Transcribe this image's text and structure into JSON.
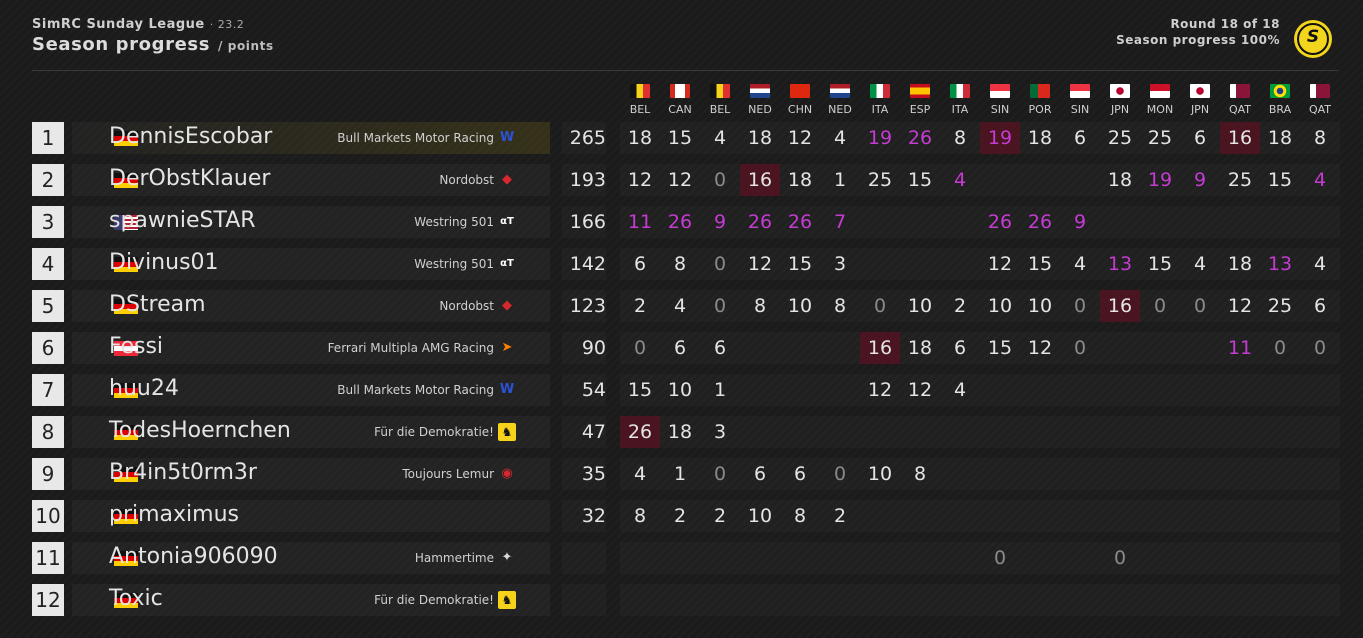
{
  "header": {
    "league": "SimRC Sunday League",
    "season": "· 23.2",
    "title": "Season progress",
    "unit": "/ points",
    "round": "Round 18 of 18",
    "progress": "Season progress 100%",
    "logo_letter": "S"
  },
  "colors": {
    "fastest_lap": "#c63bd3",
    "race_win_bg": "#4a1520",
    "accent": "#f2d51c"
  },
  "races": [
    {
      "label": "BEL",
      "flag": "belgium-flag"
    },
    {
      "label": "CAN",
      "flag": "canada-flag"
    },
    {
      "label": "BEL",
      "flag": "belgium-flag"
    },
    {
      "label": "NED",
      "flag": "netherlands-flag"
    },
    {
      "label": "CHN",
      "flag": "china-flag"
    },
    {
      "label": "NED",
      "flag": "netherlands-flag"
    },
    {
      "label": "ITA",
      "flag": "italy-flag"
    },
    {
      "label": "ESP",
      "flag": "spain-flag"
    },
    {
      "label": "ITA",
      "flag": "italy-flag"
    },
    {
      "label": "SIN",
      "flag": "singapore-flag"
    },
    {
      "label": "POR",
      "flag": "portugal-flag"
    },
    {
      "label": "SIN",
      "flag": "singapore-flag"
    },
    {
      "label": "JPN",
      "flag": "japan-flag"
    },
    {
      "label": "MON",
      "flag": "monaco-flag"
    },
    {
      "label": "JPN",
      "flag": "japan-flag"
    },
    {
      "label": "QAT",
      "flag": "qatar-flag"
    },
    {
      "label": "BRA",
      "flag": "brazil-flag"
    },
    {
      "label": "QAT",
      "flag": "qatar-flag"
    }
  ],
  "standings": [
    {
      "pos": "1",
      "driver": "DennisEscobar",
      "flag": "germany-flag",
      "team": "Bull Markets Motor Racing",
      "team_icon": "williams-icon",
      "total": "265",
      "results": [
        "18",
        "15",
        "4",
        "18",
        "12",
        "4",
        "19",
        "26",
        "8",
        "19",
        "18",
        "6",
        "25",
        "25",
        "6",
        "16",
        "18",
        "8"
      ],
      "fastest": [
        6,
        7,
        9
      ],
      "wins": [
        9,
        15
      ]
    },
    {
      "pos": "2",
      "driver": "DerObstKlauer",
      "flag": "germany-flag",
      "team": "Nordobst",
      "team_icon": "redbull-icon",
      "total": "193",
      "results": [
        "12",
        "12",
        "0",
        "16",
        "18",
        "1",
        "25",
        "15",
        "4",
        "",
        "",
        "",
        "18",
        "19",
        "9",
        "25",
        "15",
        "4"
      ],
      "fastest": [
        8,
        13,
        14,
        17
      ],
      "wins": [
        3
      ]
    },
    {
      "pos": "3",
      "driver": "spawnieSTAR",
      "flag": "usa-flag",
      "team": "Westring 501",
      "team_icon": "alphatauri-icon",
      "total": "166",
      "results": [
        "11",
        "26",
        "9",
        "26",
        "26",
        "7",
        "",
        "",
        "",
        "26",
        "26",
        "9",
        "",
        "",
        "",
        "",
        "",
        ""
      ],
      "fastest": [
        0,
        1,
        2,
        3,
        4,
        5,
        9,
        10,
        11
      ],
      "wins": []
    },
    {
      "pos": "4",
      "driver": "Divinus01",
      "flag": "germany-flag",
      "team": "Westring 501",
      "team_icon": "alphatauri-icon",
      "total": "142",
      "results": [
        "6",
        "8",
        "0",
        "12",
        "15",
        "3",
        "",
        "",
        "",
        "12",
        "15",
        "4",
        "13",
        "15",
        "4",
        "18",
        "13",
        "4"
      ],
      "fastest": [
        12,
        16
      ],
      "wins": []
    },
    {
      "pos": "5",
      "driver": "DStream",
      "flag": "germany-flag",
      "team": "Nordobst",
      "team_icon": "redbull-icon",
      "total": "123",
      "results": [
        "2",
        "4",
        "0",
        "8",
        "10",
        "8",
        "0",
        "10",
        "2",
        "10",
        "10",
        "0",
        "16",
        "0",
        "0",
        "12",
        "25",
        "6"
      ],
      "fastest": [],
      "wins": [
        12
      ]
    },
    {
      "pos": "6",
      "driver": "Fessi",
      "flag": "austria-flag",
      "team": "Ferrari Multipla AMG Racing",
      "team_icon": "mclaren-icon",
      "total": "90",
      "results": [
        "0",
        "6",
        "6",
        "",
        "",
        "",
        "16",
        "18",
        "6",
        "15",
        "12",
        "0",
        "",
        "",
        "",
        "11",
        "0",
        "0"
      ],
      "fastest": [
        15
      ],
      "wins": [
        6
      ]
    },
    {
      "pos": "7",
      "driver": "huu24",
      "flag": "germany-flag",
      "team": "Bull Markets Motor Racing",
      "team_icon": "williams-icon",
      "total": "54",
      "results": [
        "15",
        "10",
        "1",
        "",
        "",
        "",
        "12",
        "12",
        "4",
        "",
        "",
        "",
        "",
        "",
        "",
        "",
        "",
        ""
      ],
      "fastest": [],
      "wins": []
    },
    {
      "pos": "8",
      "driver": "TodesHoernchen",
      "flag": "germany-flag",
      "team": "Für die Demokratie!",
      "team_icon": "ferrari-icon",
      "total": "47",
      "results": [
        "26",
        "18",
        "3",
        "",
        "",
        "",
        "",
        "",
        "",
        "",
        "",
        "",
        "",
        "",
        "",
        "",
        "",
        ""
      ],
      "fastest": [],
      "wins": [
        0
      ]
    },
    {
      "pos": "9",
      "driver": "Br4in5t0rm3r",
      "flag": "germany-flag",
      "team": "Toujours Lemur",
      "team_icon": "haas-icon",
      "total": "35",
      "results": [
        "4",
        "1",
        "0",
        "6",
        "6",
        "0",
        "10",
        "8",
        "",
        "",
        "",
        "",
        "",
        "",
        "",
        "",
        "",
        ""
      ],
      "fastest": [],
      "wins": []
    },
    {
      "pos": "10",
      "driver": "primaximus",
      "flag": "germany-flag",
      "team": "",
      "team_icon": "",
      "total": "32",
      "results": [
        "8",
        "2",
        "2",
        "10",
        "8",
        "2",
        "",
        "",
        "",
        "",
        "",
        "",
        "",
        "",
        "",
        "",
        "",
        ""
      ],
      "fastest": [],
      "wins": []
    },
    {
      "pos": "11",
      "driver": "Antonia906090",
      "flag": "germany-flag",
      "team": "Hammertime",
      "team_icon": "mercedes-icon",
      "total": "",
      "results": [
        "",
        "",
        "",
        "",
        "",
        "",
        "",
        "",
        "",
        "0",
        "",
        "",
        "0",
        "",
        "",
        "",
        "",
        ""
      ],
      "fastest": [],
      "wins": []
    },
    {
      "pos": "12",
      "driver": "Toxic",
      "flag": "germany-flag",
      "team": "Für die Demokratie!",
      "team_icon": "ferrari-icon",
      "total": "",
      "results": [
        "",
        "",
        "",
        "",
        "",
        "",
        "",
        "",
        "",
        "",
        "",
        "",
        "",
        "",
        "",
        "",
        "",
        ""
      ],
      "fastest": [],
      "wins": []
    }
  ]
}
